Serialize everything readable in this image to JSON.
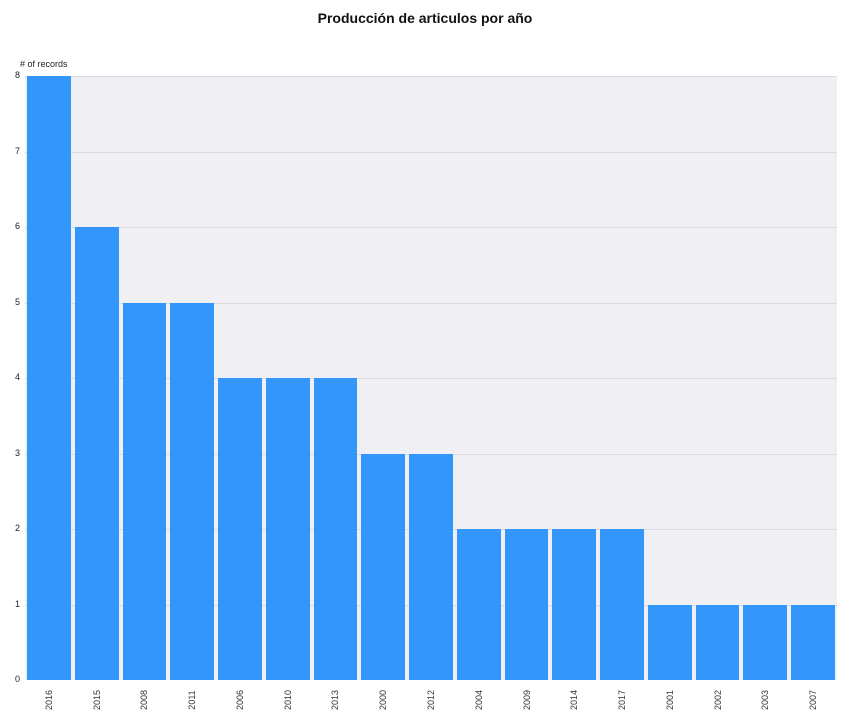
{
  "title": "Producción de articulos por año",
  "y_axis_label": "# of records",
  "colors": {
    "bar": "#3396fb",
    "plot_bg": "#f0f0f4",
    "grid": "#d9d9de"
  },
  "chart_data": {
    "type": "bar",
    "title": "Producción de articulos por año",
    "xlabel": "",
    "ylabel": "# of records",
    "categories": [
      "2016",
      "2015",
      "2008",
      "2011",
      "2006",
      "2010",
      "2013",
      "2000",
      "2012",
      "2004",
      "2009",
      "2014",
      "2017",
      "2001",
      "2002",
      "2003",
      "2007"
    ],
    "values": [
      8,
      6,
      5,
      5,
      4,
      4,
      4,
      3,
      3,
      2,
      2,
      2,
      2,
      1,
      1,
      1,
      1
    ],
    "ylim": [
      0,
      8
    ],
    "yticks": [
      0,
      1,
      2,
      3,
      4,
      5,
      6,
      7,
      8
    ],
    "grid": true,
    "legend": null
  }
}
